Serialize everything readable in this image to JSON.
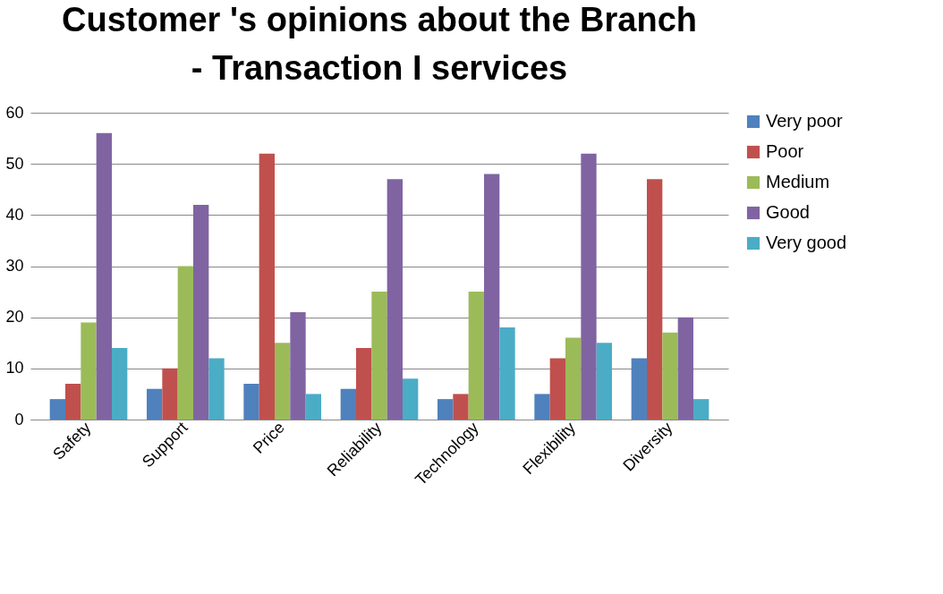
{
  "chart_data": {
    "type": "bar",
    "title": "Customer 's opinions about the Branch - Transaction I services",
    "categories": [
      "Safety",
      "Support",
      "Price",
      "Reliability",
      "Technology",
      "Flexibility",
      "Diversity"
    ],
    "series": [
      {
        "name": "Very poor",
        "color": "#4f81bd",
        "values": [
          4,
          6,
          7,
          6,
          4,
          5,
          12
        ]
      },
      {
        "name": "Poor",
        "color": "#c0504d",
        "values": [
          7,
          10,
          52,
          14,
          5,
          12,
          47
        ]
      },
      {
        "name": "Medium",
        "color": "#9bbb59",
        "values": [
          19,
          30,
          15,
          25,
          25,
          16,
          17
        ]
      },
      {
        "name": "Good",
        "color": "#8064a2",
        "values": [
          56,
          42,
          21,
          47,
          48,
          52,
          20
        ]
      },
      {
        "name": "Very good",
        "color": "#4bacc6",
        "values": [
          14,
          12,
          5,
          8,
          18,
          15,
          4
        ]
      }
    ],
    "ylim": [
      0,
      60
    ],
    "yticks": [
      0,
      10,
      20,
      30,
      40,
      50,
      60
    ],
    "grid": "y",
    "legend": "right"
  }
}
